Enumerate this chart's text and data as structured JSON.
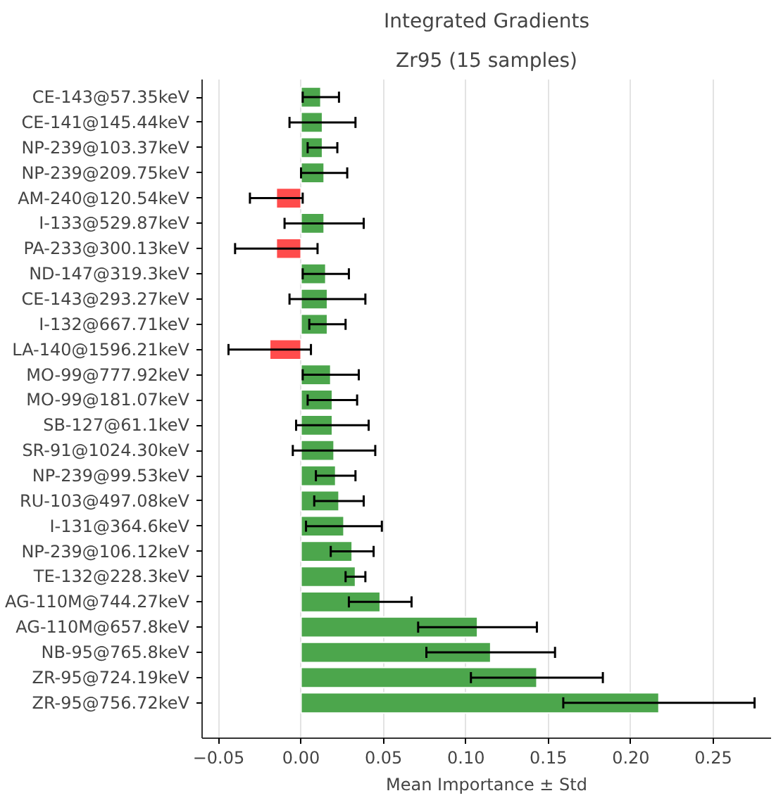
{
  "chart_data": {
    "type": "bar",
    "orientation": "horizontal",
    "title": "Integrated Gradients",
    "subtitle": "Zr95 (15 samples)",
    "xlabel": "Mean Importance ± Std",
    "categories": [
      "CE-143@57.35keV",
      "CE-141@145.44keV",
      "NP-239@103.37keV",
      "NP-239@209.75keV",
      "AM-240@120.54keV",
      "I-133@529.87keV",
      "PA-233@300.13keV",
      "ND-147@319.3keV",
      "CE-143@293.27keV",
      "I-132@667.71keV",
      "LA-140@1596.21keV",
      "MO-99@777.92keV",
      "MO-99@181.07keV",
      "SB-127@61.1keV",
      "SR-91@1024.30keV",
      "NP-239@99.53keV",
      "RU-103@497.08keV",
      "I-131@364.6keV",
      "NP-239@106.12keV",
      "TE-132@228.3keV",
      "AG-110M@744.27keV",
      "AG-110M@657.8keV",
      "NB-95@765.8keV",
      "ZR-95@724.19keV",
      "ZR-95@756.72keV"
    ],
    "values": [
      0.012,
      0.013,
      0.013,
      0.014,
      -0.015,
      0.014,
      -0.015,
      0.015,
      0.016,
      0.016,
      -0.019,
      0.018,
      0.019,
      0.019,
      0.02,
      0.021,
      0.023,
      0.026,
      0.031,
      0.033,
      0.048,
      0.107,
      0.115,
      0.143,
      0.217
    ],
    "errors": [
      0.011,
      0.02,
      0.009,
      0.014,
      0.016,
      0.024,
      0.025,
      0.014,
      0.023,
      0.011,
      0.025,
      0.017,
      0.015,
      0.022,
      0.025,
      0.012,
      0.015,
      0.023,
      0.013,
      0.006,
      0.019,
      0.036,
      0.039,
      0.04,
      0.058
    ],
    "colors": [
      "#4ca64c",
      "#4ca64c",
      "#4ca64c",
      "#4ca64c",
      "#ff4c4c",
      "#4ca64c",
      "#ff4c4c",
      "#4ca64c",
      "#4ca64c",
      "#4ca64c",
      "#ff4c4c",
      "#4ca64c",
      "#4ca64c",
      "#4ca64c",
      "#4ca64c",
      "#4ca64c",
      "#4ca64c",
      "#4ca64c",
      "#4ca64c",
      "#4ca64c",
      "#4ca64c",
      "#4ca64c",
      "#4ca64c",
      "#4ca64c",
      "#4ca64c"
    ],
    "xlim": [
      -0.06,
      0.285
    ],
    "xticks": [
      {
        "value": -0.05,
        "label": "−0.05"
      },
      {
        "value": 0,
        "label": "0.00"
      },
      {
        "value": 0.05,
        "label": "0.05"
      },
      {
        "value": 0.1,
        "label": "0.10"
      },
      {
        "value": 0.15,
        "label": "0.15"
      },
      {
        "value": 0.2,
        "label": "0.20"
      },
      {
        "value": 0.25,
        "label": "0.25"
      }
    ],
    "grid": "x"
  }
}
